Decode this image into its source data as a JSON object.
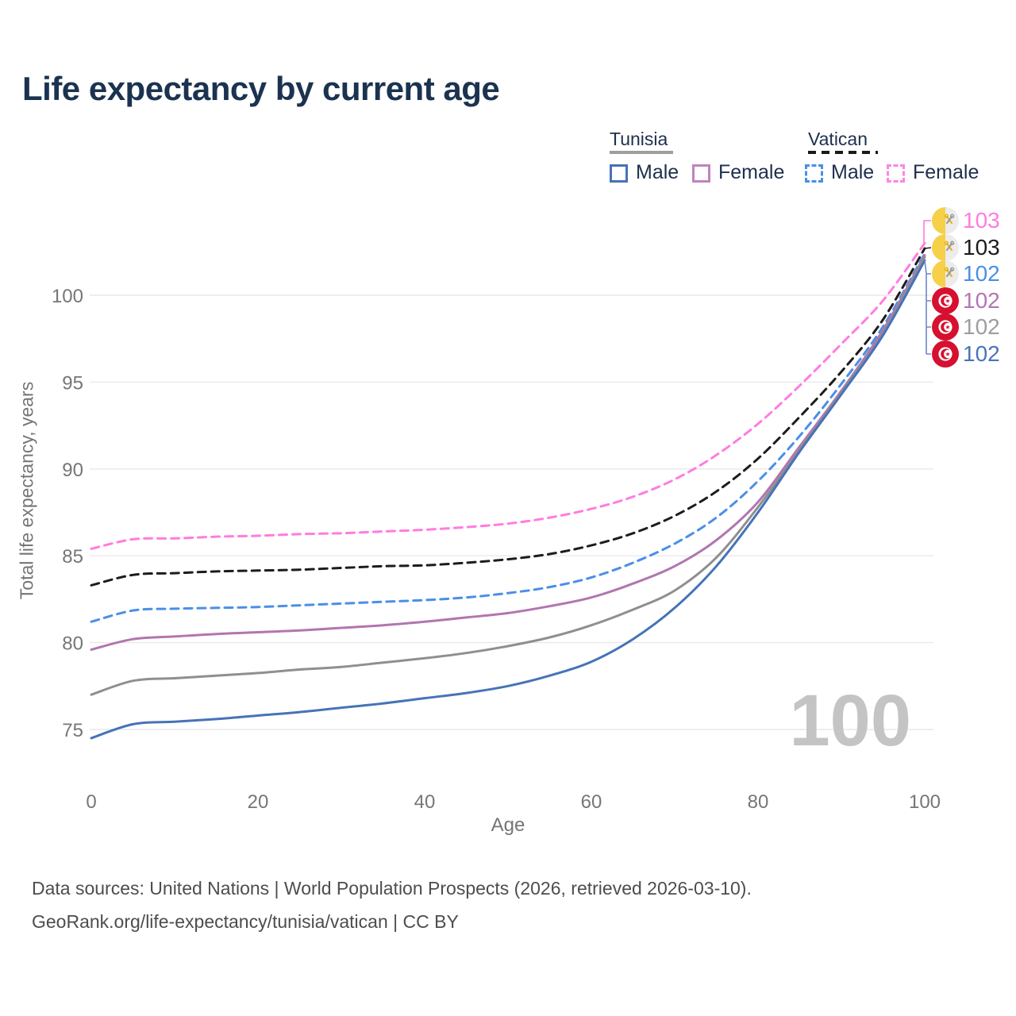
{
  "page": {
    "title": "Life expectancy by current age"
  },
  "legend": {
    "groups": [
      {
        "label": "Tunisia",
        "line_style": "solid",
        "underline_color": "#9e9e9e",
        "items": [
          {
            "label": "Male",
            "color": "#4673b8"
          },
          {
            "label": "Female",
            "color": "#c083bf"
          }
        ]
      },
      {
        "label": "Vatican",
        "line_style": "dashed",
        "underline_color": "#1a1a1a",
        "items": [
          {
            "label": "Male",
            "color": "#4a8fe8"
          },
          {
            "label": "Female",
            "color": "#ff85e2"
          }
        ]
      }
    ]
  },
  "chart_data": {
    "type": "line",
    "title": "Life expectancy by current age",
    "xlabel": "Age",
    "ylabel": "Total life expectancy, years",
    "x_ticks": [
      0,
      20,
      40,
      60,
      80,
      100
    ],
    "y_ticks": [
      75,
      80,
      85,
      90,
      95,
      100
    ],
    "xlim": [
      0,
      100
    ],
    "ylim": [
      73,
      104
    ],
    "grid": "horizontal-only",
    "legend_position": "top-right",
    "watermark": "100",
    "ages": [
      0,
      5,
      10,
      15,
      20,
      25,
      30,
      35,
      40,
      45,
      50,
      55,
      60,
      65,
      70,
      75,
      80,
      85,
      90,
      95,
      100
    ],
    "series": [
      {
        "name": "Vatican Female",
        "country": "vatican",
        "sex": "female",
        "style": "dashed",
        "color": "#ff7ce0",
        "end_value": 103,
        "values": [
          85.4,
          85.95,
          86.0,
          86.1,
          86.15,
          86.25,
          86.3,
          86.4,
          86.5,
          86.65,
          86.85,
          87.2,
          87.7,
          88.4,
          89.4,
          90.8,
          92.6,
          94.8,
          97.2,
          99.7,
          103.0
        ]
      },
      {
        "name": "Vatican",
        "country": "vatican",
        "sex": "both",
        "style": "dashed",
        "color": "#1c1c1c",
        "end_value": 103,
        "values": [
          83.3,
          83.9,
          84.0,
          84.1,
          84.15,
          84.2,
          84.3,
          84.4,
          84.45,
          84.6,
          84.8,
          85.1,
          85.6,
          86.3,
          87.3,
          88.7,
          90.6,
          93.0,
          95.6,
          98.6,
          102.7
        ]
      },
      {
        "name": "Vatican Male",
        "country": "vatican",
        "sex": "male",
        "style": "dashed",
        "color": "#4a8fe8",
        "end_value": 102,
        "values": [
          81.2,
          81.85,
          81.95,
          82.0,
          82.05,
          82.15,
          82.25,
          82.35,
          82.45,
          82.6,
          82.85,
          83.2,
          83.75,
          84.6,
          85.7,
          87.2,
          89.3,
          91.9,
          94.9,
          98.2,
          102.4
        ]
      },
      {
        "name": "Tunisia Female",
        "country": "tunisia",
        "sex": "female",
        "style": "solid",
        "color": "#b176af",
        "end_value": 102,
        "values": [
          79.6,
          80.2,
          80.35,
          80.5,
          80.6,
          80.7,
          80.85,
          81.0,
          81.2,
          81.45,
          81.7,
          82.1,
          82.6,
          83.4,
          84.4,
          85.9,
          88.1,
          91.3,
          94.5,
          98.0,
          102.3
        ]
      },
      {
        "name": "Tunisia",
        "country": "tunisia",
        "sex": "both",
        "style": "solid",
        "color": "#8f8f8f",
        "end_value": 102,
        "values": [
          77.0,
          77.8,
          77.95,
          78.1,
          78.25,
          78.45,
          78.6,
          78.85,
          79.1,
          79.4,
          79.8,
          80.3,
          81.0,
          81.9,
          83.0,
          84.9,
          87.8,
          91.1,
          94.4,
          97.8,
          102.2
        ]
      },
      {
        "name": "Tunisia Male",
        "country": "tunisia",
        "sex": "male",
        "style": "solid",
        "color": "#4673b8",
        "end_value": 102,
        "values": [
          74.5,
          75.3,
          75.45,
          75.6,
          75.8,
          76.0,
          76.25,
          76.5,
          76.8,
          77.1,
          77.5,
          78.1,
          78.9,
          80.2,
          82.0,
          84.4,
          87.5,
          91.0,
          94.3,
          97.7,
          102.0
        ]
      }
    ]
  },
  "end_labels": [
    {
      "value": "103",
      "color": "#ff7ce0",
      "country": "vatican"
    },
    {
      "value": "103",
      "color": "#1c1c1c",
      "country": "vatican"
    },
    {
      "value": "102",
      "color": "#4a8fe8",
      "country": "vatican"
    },
    {
      "value": "102",
      "color": "#b674b4",
      "country": "tunisia"
    },
    {
      "value": "102",
      "color": "#9e9e9e",
      "country": "tunisia"
    },
    {
      "value": "102",
      "color": "#4a74b8",
      "country": "tunisia"
    }
  ],
  "footer": {
    "line1": "Data sources: United Nations | World Population Prospects (2026, retrieved 2026-03-10).",
    "line2": "GeoRank.org/life-expectancy/tunisia/vatican | CC BY"
  }
}
